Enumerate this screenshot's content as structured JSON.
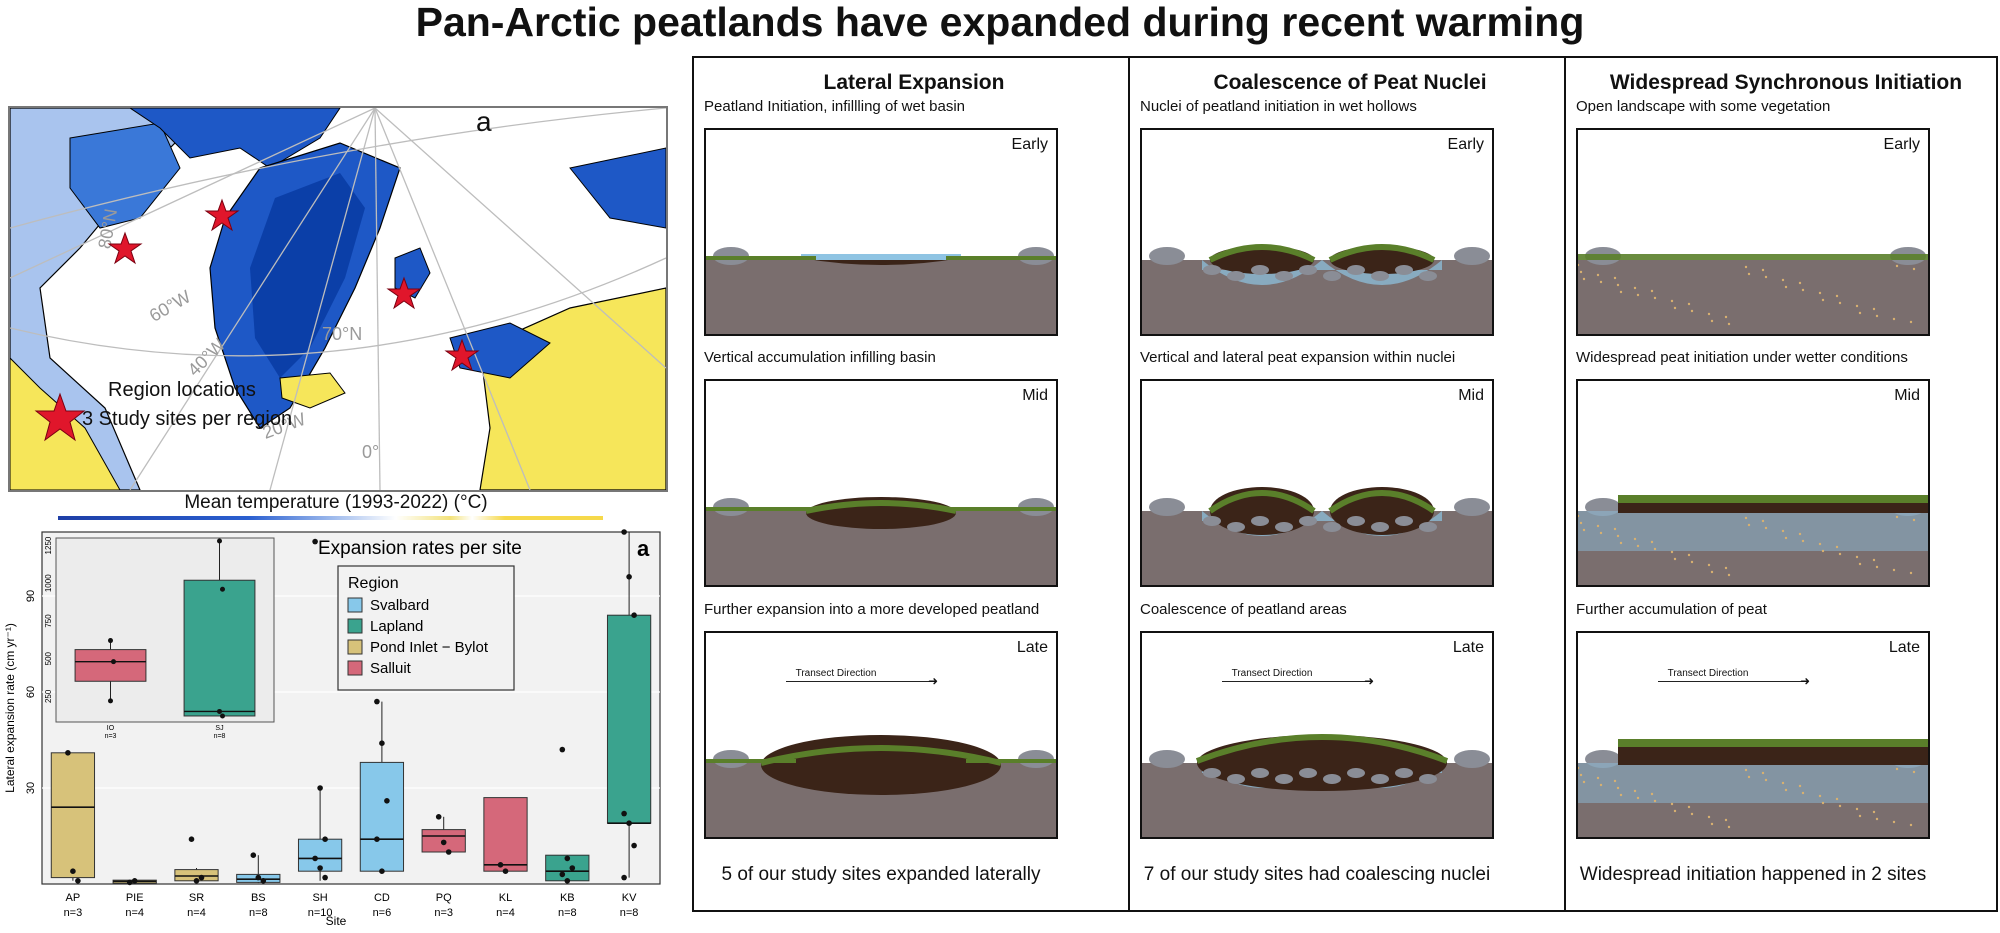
{
  "title": "Pan-Arctic peatlands have expanded during recent warming",
  "map": {
    "panel_letter": "a",
    "legend_text_1": "Region locations",
    "legend_text_2": "3 Study sites per region",
    "grid_labels": [
      "80°N",
      "60°W",
      "70°N",
      "40°W",
      "20°W",
      "0°"
    ],
    "colorbar_title": "Mean temperature (1993-2022) (°C)",
    "colors": {
      "ocean": "#ffffff",
      "cold": "#0b3fa8",
      "cool": "#3a78d8",
      "mild": "#a9c4ee",
      "warm": "#f6e65a",
      "land_edge": "#000000",
      "star": "#e0162b"
    }
  },
  "chart_data": {
    "type": "box",
    "title": "Expansion rates per site",
    "panel_letter": "a",
    "xlabel": "Site",
    "ylabel": "Lateral expansion rate (cm yr⁻¹)",
    "yticks": [
      30,
      60,
      90
    ],
    "ylim": [
      0,
      110
    ],
    "legend_title": "Region",
    "legend": [
      {
        "name": "Svalbard",
        "color": "#87c8ea"
      },
      {
        "name": "Lapland",
        "color": "#3aa38e"
      },
      {
        "name": "Pond Inlet − Bylot",
        "color": "#d7c27a"
      },
      {
        "name": "Salluit",
        "color": "#d5687a"
      }
    ],
    "sites": [
      {
        "site": "AP",
        "n": "n=3",
        "region": "Pond Inlet − Bylot",
        "q1": 2,
        "median": 24,
        "q3": 41,
        "wlo": 1,
        "whi": 41,
        "points": [
          41,
          4,
          1
        ]
      },
      {
        "site": "PIE",
        "n": "n=4",
        "region": "Pond Inlet − Bylot",
        "q1": 0.2,
        "median": 0.8,
        "q3": 1.2,
        "wlo": 0,
        "whi": 1.5,
        "points": [
          0.5,
          1
        ]
      },
      {
        "site": "SR",
        "n": "n=4",
        "region": "Pond Inlet − Bylot",
        "q1": 1,
        "median": 2.5,
        "q3": 4.5,
        "wlo": 0.5,
        "whi": 5,
        "points": [
          14,
          1,
          2
        ]
      },
      {
        "site": "BS",
        "n": "n=8",
        "region": "Svalbard",
        "q1": 0.5,
        "median": 1.5,
        "q3": 3,
        "wlo": 0.3,
        "whi": 9,
        "points": [
          9,
          2,
          1
        ]
      },
      {
        "site": "SH",
        "n": "n=10",
        "region": "Svalbard",
        "q1": 4,
        "median": 8,
        "q3": 14,
        "wlo": 1,
        "whi": 30,
        "points": [
          107,
          30,
          14,
          8,
          5,
          2
        ]
      },
      {
        "site": "CD",
        "n": "n=6",
        "region": "Svalbard",
        "q1": 4,
        "median": 14,
        "q3": 38,
        "wlo": 4,
        "whi": 57,
        "points": [
          57,
          44,
          26,
          14,
          4
        ]
      },
      {
        "site": "PQ",
        "n": "n=3",
        "region": "Salluit",
        "q1": 10,
        "median": 15,
        "q3": 17,
        "wlo": 10,
        "whi": 21,
        "points": [
          21,
          13,
          10
        ]
      },
      {
        "site": "KL",
        "n": "n=4",
        "region": "Salluit",
        "q1": 4,
        "median": 6,
        "q3": 27,
        "wlo": 4,
        "whi": 27,
        "points": [
          6,
          4
        ]
      },
      {
        "site": "KB",
        "n": "n=8",
        "region": "Lapland",
        "q1": 1,
        "median": 4,
        "q3": 9,
        "wlo": 0.5,
        "whi": 9,
        "points": [
          42,
          8,
          5,
          3,
          1
        ]
      },
      {
        "site": "KV",
        "n": "n=8",
        "region": "Lapland",
        "q1": 19,
        "median": 19,
        "q3": 84,
        "wlo": 2,
        "whi": 110,
        "points": [
          110,
          96,
          84,
          22,
          19,
          12,
          2
        ]
      }
    ],
    "inset": {
      "yticks": [
        250,
        500,
        750,
        1000,
        1250
      ],
      "ylim": [
        80,
        1300
      ],
      "sites": [
        {
          "site": "IO",
          "n": "n=3",
          "region": "Salluit",
          "q1": 350,
          "median": 480,
          "q3": 560,
          "wlo": 220,
          "whi": 620,
          "points": [
            620,
            480,
            220
          ]
        },
        {
          "site": "SJ",
          "n": "n=8",
          "region": "Lapland",
          "q1": 120,
          "median": 150,
          "q3": 1020,
          "wlo": 120,
          "whi": 1280,
          "points": [
            1280,
            960,
            150,
            120
          ]
        }
      ]
    }
  },
  "schematic": {
    "columns": [
      {
        "title": "Lateral Expansion",
        "summary": "5 of our study sites expanded laterally",
        "panels": [
          {
            "caption": "Peatland Initiation, infillling of wet basin",
            "stage": "Early"
          },
          {
            "caption": "Vertical accumulation infilling basin",
            "stage": "Mid"
          },
          {
            "caption": "Further expansion into a more developed peatland",
            "stage": "Late",
            "transect": "Transect Direction"
          }
        ]
      },
      {
        "title": "Coalescence of Peat Nuclei",
        "summary": "7 of our study sites had coalescing nuclei",
        "panels": [
          {
            "caption": "Nuclei of peatland initiation in wet hollows",
            "stage": "Early"
          },
          {
            "caption": "Vertical and lateral peat expansion within nuclei",
            "stage": "Mid"
          },
          {
            "caption": "Coalescence of peatland areas",
            "stage": "Late",
            "transect": "Transect Direction"
          }
        ]
      },
      {
        "title": "Widespread Synchronous Initiation",
        "summary": "Widespread initiation happened in 2 sites",
        "panels": [
          {
            "caption": "Open landscape with some vegetation",
            "stage": "Early"
          },
          {
            "caption": "Widespread peat initiation under wetter conditions",
            "stage": "Mid"
          },
          {
            "caption": "Further accumulation of peat",
            "stage": "Late",
            "transect": "Transect Direction"
          }
        ]
      }
    ],
    "colors": {
      "ground": "#7a6e6e",
      "peat": "#3b2418",
      "moss": "#5a7f2a",
      "water": "#8fc4e3",
      "rock": "#8a8d96"
    }
  }
}
